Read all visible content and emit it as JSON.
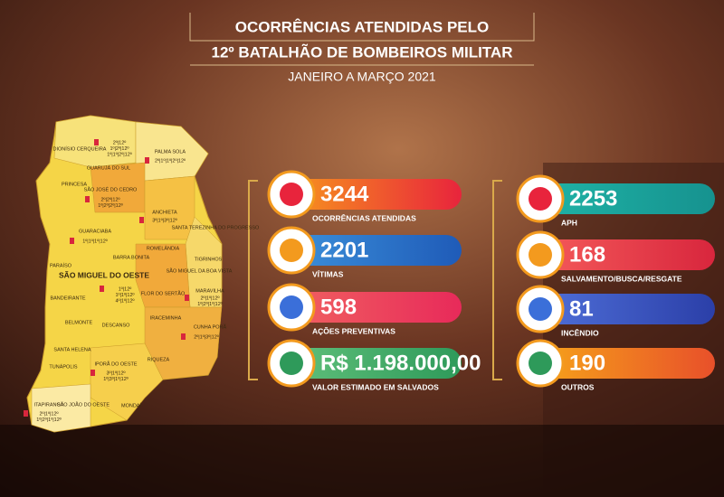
{
  "header": {
    "title_line1": "OCORRÊNCIAS ATENDIDAS PELO",
    "title_line2": "12º BATALHÃO DE BOMBEIROS MILITAR",
    "subtitle": "JANEIRO A MARÇO 2021"
  },
  "stats_left": [
    {
      "value": "3244",
      "label": "OCORRÊNCIAS ATENDIDAS"
    },
    {
      "value": "2201",
      "label": "VÍTIMAS"
    },
    {
      "value": "598",
      "label": "AÇÕES PREVENTIVAS"
    },
    {
      "value": "R$ 1.198.000,00",
      "label": "VALOR ESTIMADO EM SALVADOS"
    }
  ],
  "stats_right": [
    {
      "value": "2253",
      "label": "APH"
    },
    {
      "value": "168",
      "label": "SALVAMENTO/BUSCA/RESGATE"
    },
    {
      "value": "81",
      "label": "INCÊNDIO"
    },
    {
      "value": "190",
      "label": "OUTROS"
    }
  ],
  "map": {
    "regions": [
      {
        "name": "DIONÍSIO CERQUEIRA",
        "codes": [
          "2º|12º",
          "1º|2º|12º",
          "1º|1º|2º|12º"
        ]
      },
      {
        "name": "PALMA SOLA",
        "codes": [
          "2º|1º|1º|2º|12º"
        ]
      },
      {
        "name": "GUARUJÁ DO SUL",
        "codes": []
      },
      {
        "name": "PRINCESA",
        "codes": []
      },
      {
        "name": "SÃO JOSÉ DO CEDRO",
        "codes": [
          "2º|2º|12º",
          "1º|2º|2º|12º"
        ]
      },
      {
        "name": "ANCHIETA",
        "codes": [
          "3º|1º|3º|12º"
        ]
      },
      {
        "name": "SANTA TEREZINHA DO PROGRESSO",
        "codes": []
      },
      {
        "name": "GUARACIABA",
        "codes": [
          "1º|1º|1º|12º"
        ]
      },
      {
        "name": "BARRA BONITA",
        "codes": []
      },
      {
        "name": "ROMELÂNDIA",
        "codes": []
      },
      {
        "name": "TIGRINHOS",
        "codes": []
      },
      {
        "name": "PARAÍSO",
        "codes": []
      },
      {
        "name": "SÃO MIGUEL DO OESTE",
        "codes": [
          "1º|12º",
          "1º|1º|12º",
          "4º|1º|12º"
        ]
      },
      {
        "name": "SÃO MIGUEL DA BOA VISTA",
        "codes": []
      },
      {
        "name": "BANDEIRANTE",
        "codes": []
      },
      {
        "name": "FLOR DO SERTÃO",
        "codes": []
      },
      {
        "name": "MARAVILHA",
        "codes": [
          "2º|1º|12º",
          "1º|2º|1º|12º"
        ]
      },
      {
        "name": "BELMONTE",
        "codes": []
      },
      {
        "name": "DESCANSO",
        "codes": []
      },
      {
        "name": "IRACEMINHA",
        "codes": []
      },
      {
        "name": "CUNHA PORÃ",
        "codes": [
          "2º|1º|3º|12º"
        ]
      },
      {
        "name": "SANTA HELENA",
        "codes": []
      },
      {
        "name": "RIQUEZA",
        "codes": []
      },
      {
        "name": "TUNÁPOLIS",
        "codes": []
      },
      {
        "name": "IPORÃ DO OESTE",
        "codes": [
          "3º|1º|12º",
          "1º|3º|1º|12º"
        ]
      },
      {
        "name": "ITAPIRANGA",
        "codes": [
          "2º|1º|12º",
          "1º|2º|1º|12º"
        ]
      },
      {
        "name": "SÃO JOÃO DO OESTE",
        "codes": []
      },
      {
        "name": "MONDAÍ",
        "codes": []
      }
    ]
  }
}
